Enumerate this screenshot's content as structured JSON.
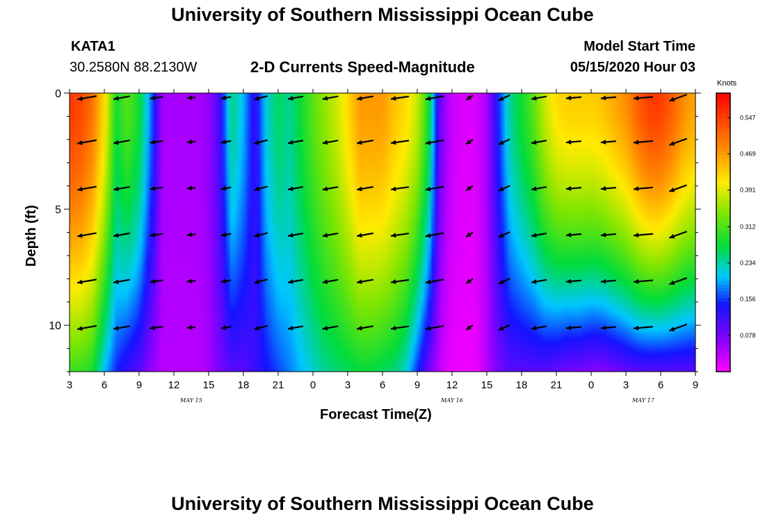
{
  "page": {
    "title_top": "University of Southern Mississippi Ocean Cube",
    "title_bottom": "University of Southern Mississippi Ocean Cube",
    "station_id": "KATA1",
    "coordinates": "30.2580N 88.2130W",
    "chart_title": "2-D Currents Speed-Magnitude",
    "model_label": "Model Start Time",
    "model_time": "05/15/2020 Hour 03"
  },
  "chart_data": {
    "type": "heatmap",
    "title": "2-D Currents Speed-Magnitude",
    "xlabel": "Forecast Time(Z)",
    "ylabel": "Depth (ft)",
    "x_tick_labels": [
      "3",
      "6",
      "9",
      "12",
      "15",
      "18",
      "21",
      "0",
      "3",
      "6",
      "9",
      "12",
      "15",
      "18",
      "21",
      "0",
      "3",
      "6",
      "9"
    ],
    "x_range_hours": [
      0,
      54
    ],
    "date_labels": [
      {
        "text": "MAY 15",
        "hour": 10.5
      },
      {
        "text": "MAY 16",
        "hour": 33
      },
      {
        "text": "MAY 17",
        "hour": 49.5
      }
    ],
    "y_tick_labels": [
      "0",
      "5",
      "10"
    ],
    "y_ticks": [
      0,
      5,
      10
    ],
    "ylim": [
      0,
      12
    ],
    "colorbar": {
      "unit": "Knots",
      "tick_labels": [
        "0.547",
        "0.469",
        "0.391",
        "0.312",
        "0.234",
        "0.156",
        "0.078"
      ],
      "range": [
        0,
        0.6
      ]
    },
    "depth_profile_rows": [
      0.5,
      1.5,
      2.5,
      3.5,
      4.5,
      5.5,
      6.5,
      7.5,
      8.5,
      9.5,
      10.5,
      11.5
    ],
    "columns_hours": [
      0,
      1,
      2,
      3,
      4,
      5,
      6,
      7,
      8,
      9,
      10,
      11,
      12,
      13,
      14,
      15,
      16,
      17,
      18,
      19,
      20,
      21,
      22,
      23,
      24,
      25,
      26,
      27,
      28,
      29,
      30,
      31,
      32,
      33,
      34,
      35,
      36,
      37,
      38,
      39,
      40,
      41,
      42,
      43,
      44,
      45,
      46,
      47,
      48,
      49,
      50,
      51,
      52,
      53,
      54
    ],
    "surface_speed_knots": [
      0.55,
      0.54,
      0.5,
      0.42,
      0.28,
      0.32,
      0.28,
      0.18,
      0.05,
      0.05,
      0.05,
      0.05,
      0.06,
      0.12,
      0.25,
      0.2,
      0.12,
      0.22,
      0.26,
      0.24,
      0.28,
      0.32,
      0.35,
      0.38,
      0.42,
      0.47,
      0.47,
      0.47,
      0.44,
      0.42,
      0.38,
      0.28,
      0.08,
      0.03,
      0.02,
      0.02,
      0.05,
      0.15,
      0.24,
      0.28,
      0.32,
      0.38,
      0.42,
      0.43,
      0.43,
      0.43,
      0.44,
      0.46,
      0.48,
      0.52,
      0.55,
      0.55,
      0.52,
      0.48,
      0.46
    ],
    "bottom_speed_knots": [
      0.3,
      0.3,
      0.28,
      0.2,
      0.15,
      0.12,
      0.1,
      0.06,
      0.04,
      0.04,
      0.04,
      0.04,
      0.05,
      0.08,
      0.1,
      0.1,
      0.12,
      0.14,
      0.16,
      0.18,
      0.2,
      0.22,
      0.24,
      0.25,
      0.26,
      0.27,
      0.27,
      0.26,
      0.25,
      0.22,
      0.15,
      0.08,
      0.03,
      0.01,
      0.01,
      0.01,
      0.04,
      0.08,
      0.1,
      0.1,
      0.1,
      0.1,
      0.09,
      0.08,
      0.08,
      0.07,
      0.07,
      0.08,
      0.09,
      0.1,
      0.1,
      0.1,
      0.1,
      0.1,
      0.1
    ],
    "vector_hours": [
      1.5,
      4.5,
      7.5,
      10.5,
      13.5,
      16.5,
      19.5,
      22.5,
      25.5,
      28.5,
      31.5,
      34.5,
      37.5,
      40.5,
      43.5,
      46.5,
      49.5,
      52.5
    ],
    "vector_depths_ft": [
      0.2,
      2.1,
      4.1,
      6.1,
      8.1,
      10.1
    ],
    "vector_direction_deg": [
      190,
      190,
      188,
      185,
      190,
      195,
      190,
      190,
      190,
      188,
      190,
      215,
      205,
      190,
      185,
      185,
      185,
      200
    ],
    "vector_magnitude_knots": [
      0.45,
      0.35,
      0.22,
      0.05,
      0.12,
      0.25,
      0.3,
      0.32,
      0.35,
      0.4,
      0.42,
      0.05,
      0.2,
      0.3,
      0.3,
      0.3,
      0.45,
      0.42
    ]
  }
}
